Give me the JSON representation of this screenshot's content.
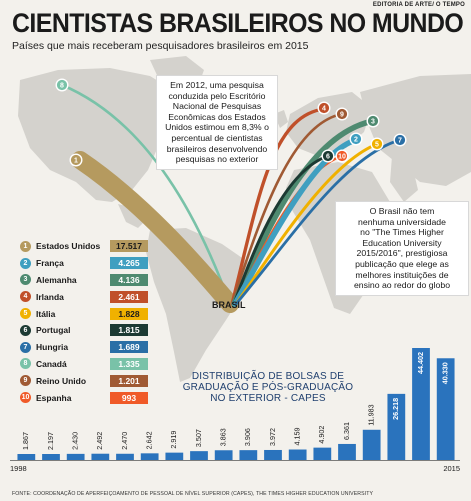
{
  "credit": "EDITORIA DE ARTE/ O TEMPO",
  "title": "CIENTISTAS BRASILEIROS NO MUNDO",
  "subtitle": "Países que mais receberam pesquisadores brasileiros em 2015",
  "callout1": [
    "Em 2012, uma pesquisa",
    "conduzida pelo Escritório",
    "Nacional de Pesquisas",
    "Econômicas dos Estados",
    "Unidos estimou em 8,3% o",
    "percentual de cientistas",
    "brasileiros desenvolvendo",
    "pesquisas no exterior"
  ],
  "callout2": [
    "O Brasil não tem",
    "nenhuma universidade",
    "no \"The Times Higher",
    "Education University",
    "2015/2016\", prestigiosa",
    "publicação que elege as",
    "melhores instituições de",
    "ensino ao redor do globo"
  ],
  "brasil_label": "BRASIL",
  "hist_title": [
    "DISTRIBUIÇÃO DE BOLSAS DE",
    "GRADUAÇÃO E PÓS-GRADUAÇÃO",
    "NO EXTERIOR - CAPES"
  ],
  "source": "FONTE: COORDENAÇÃO DE APERFEIÇOAMENTO DE PESSOAL DE NÍVEL SUPERIOR (CAPES), THE TIMES HIGHER EDUCATION UNIVERSITY",
  "colors": {
    "estados_unidos": "#b59a5f",
    "franca": "#3f9fc0",
    "alemanha": "#4e8a70",
    "irlanda": "#c0502a",
    "italia": "#f0b100",
    "portugal": "#1c3a33",
    "hungria": "#2a6fa6",
    "canada": "#79c2a8",
    "reino_unido": "#a05a34",
    "espanha": "#f05a28",
    "bars": "#2a73bd"
  },
  "chart_data": [
    {
      "type": "table",
      "rows": [
        {
          "rank": "1",
          "country": "Estados Unidos",
          "value": "17.517",
          "color": "#b59a5f"
        },
        {
          "rank": "2",
          "country": "França",
          "value": "4.265",
          "color": "#3f9fc0"
        },
        {
          "rank": "3",
          "country": "Alemanha",
          "value": "4.136",
          "color": "#4e8a70"
        },
        {
          "rank": "4",
          "country": "Irlanda",
          "value": "2.461",
          "color": "#c0502a"
        },
        {
          "rank": "5",
          "country": "Itália",
          "value": "1.828",
          "color": "#f0b100"
        },
        {
          "rank": "6",
          "country": "Portugal",
          "value": "1.815",
          "color": "#1c3a33"
        },
        {
          "rank": "7",
          "country": "Hungria",
          "value": "1.689",
          "color": "#2a6fa6"
        },
        {
          "rank": "8",
          "country": "Canadá",
          "value": "1.335",
          "color": "#79c2a8"
        },
        {
          "rank": "9",
          "country": "Reino Unido",
          "value": "1.201",
          "color": "#a05a34"
        },
        {
          "rank": "10",
          "country": "Espanha",
          "value": "993",
          "color": "#f05a28"
        }
      ]
    },
    {
      "type": "bar",
      "title": "DISTRIBUIÇÃO DE BOLSAS DE GRADUAÇÃO E PÓS-GRADUAÇÃO NO EXTERIOR - CAPES",
      "x_start_label": "1998",
      "x_end_label": "2015",
      "labels": [
        "1.867",
        "2.197",
        "2.430",
        "2.492",
        "2.470",
        "2.642",
        "2.919",
        "3.507",
        "3.863",
        "3.906",
        "3.972",
        "4.159",
        "4.902",
        "6.361",
        "11.983",
        "26.218",
        "44.402",
        "40.330"
      ],
      "values": [
        1867,
        2197,
        2430,
        2492,
        2470,
        2642,
        2919,
        3507,
        3863,
        3906,
        3972,
        4159,
        4902,
        6361,
        11983,
        26218,
        44402,
        40330
      ],
      "ylim": [
        0,
        44402
      ]
    }
  ]
}
